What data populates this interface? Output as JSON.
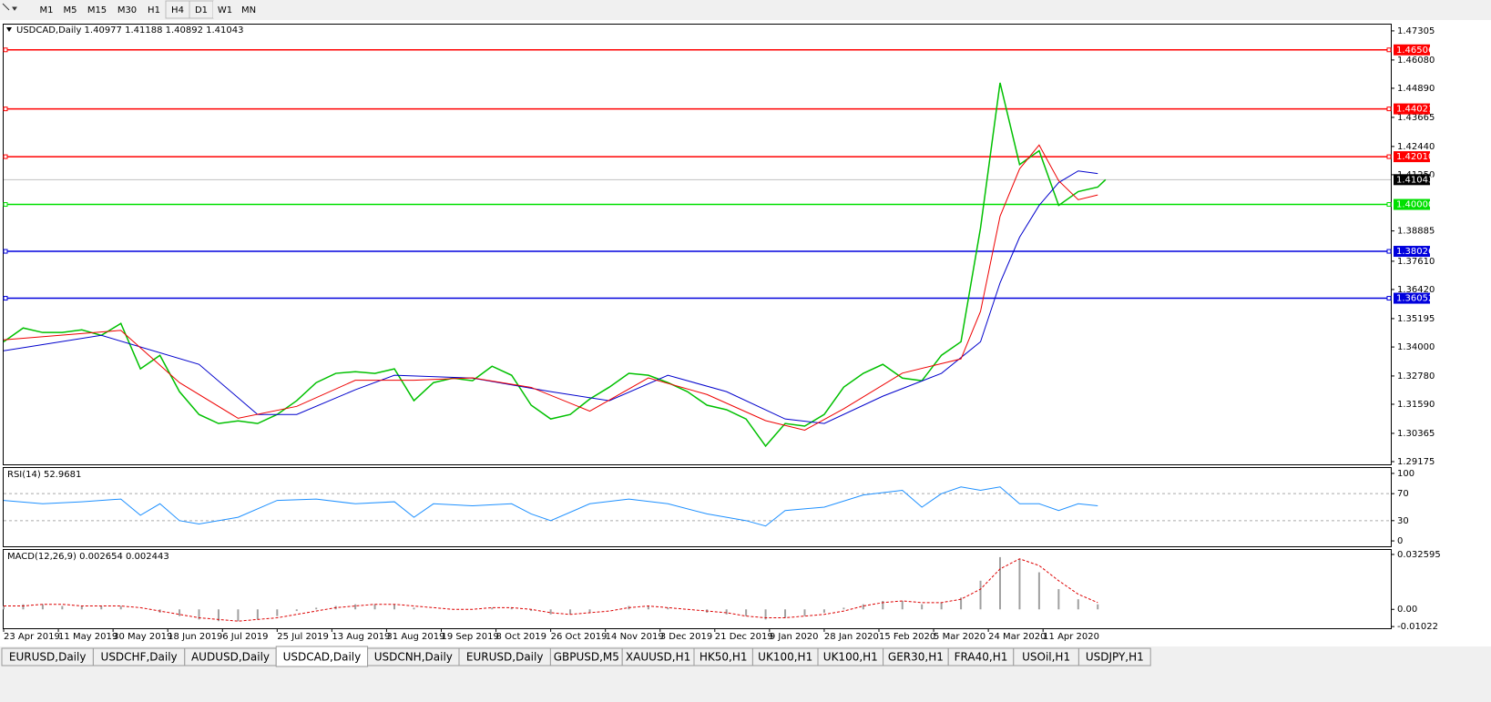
{
  "toolbar": {
    "buttons": [
      "M1",
      "M5",
      "M15",
      "M30",
      "H1",
      "H4",
      "D1",
      "W1",
      "MN"
    ]
  },
  "chart": {
    "header": "USDCAD,Daily  1.40977 1.41188 1.40892 1.41043",
    "xlim": [
      0,
      355
    ],
    "xticks": [
      {
        "value": 0,
        "label": "23 Apr 2019"
      },
      {
        "value": 14,
        "label": "11 May 2019"
      },
      {
        "value": 28,
        "label": "30 May 2019"
      },
      {
        "value": 42,
        "label": "18 Jun 2019"
      },
      {
        "value": 56,
        "label": "6 Jul 2019"
      },
      {
        "value": 70,
        "label": "25 Jul 2019"
      },
      {
        "value": 84,
        "label": "13 Aug 2019"
      },
      {
        "value": 98,
        "label": "31 Aug 2019"
      },
      {
        "value": 112,
        "label": "19 Sep 2019"
      },
      {
        "value": 126,
        "label": "8 Oct 2019"
      },
      {
        "value": 140,
        "label": "26 Oct 2019"
      },
      {
        "value": 154,
        "label": "14 Nov 2019"
      },
      {
        "value": 168,
        "label": "3 Dec 2019"
      },
      {
        "value": 182,
        "label": "21 Dec 2019"
      },
      {
        "value": 196,
        "label": "9 Jan 2020"
      },
      {
        "value": 210,
        "label": "28 Jan 2020"
      },
      {
        "value": 224,
        "label": "15 Feb 2020"
      },
      {
        "value": 238,
        "label": "5 Mar 2020"
      },
      {
        "value": 252,
        "label": "24 Mar 2020"
      },
      {
        "value": 266,
        "label": "11 Apr 2020"
      }
    ],
    "ylim": [
      1.2906,
      1.4757
    ],
    "yticks": [
      1.47305,
      {
        "value": 1.4608,
        "label": "1.46080"
      },
      {
        "value": 1.4489,
        "label": "1.44890"
      },
      1.43665,
      {
        "value": 1.4244,
        "label": "1.42440"
      },
      {
        "value": 1.4125,
        "label": "1.41250"
      },
      1.38885,
      {
        "value": 1.3761,
        "label": "1.37610"
      },
      {
        "value": 1.3642,
        "label": "1.36420"
      },
      1.35195,
      {
        "value": 1.34,
        "label": "1.34000"
      },
      {
        "value": 1.3278,
        "label": "1.32780"
      },
      {
        "value": 1.3159,
        "label": "1.31590"
      },
      1.30365,
      1.29175
    ],
    "levels": [
      {
        "value": 1.46506,
        "color": "#ff0000"
      },
      {
        "value": 1.44021,
        "color": "#ff0000"
      },
      {
        "value": {
          "value": 1.4201,
          "label": "1.42010"
        },
        "color": "#ff0000"
      },
      {
        "value": {
          "value": 1.4,
          "label": "1.40000"
        },
        "color": "#00e000"
      },
      {
        "value": 1.38026,
        "color": "#0000dd"
      },
      {
        "value": 1.36052,
        "color": "#0000dd"
      }
    ],
    "current": 1.41043,
    "series": [
      {
        "name": "price",
        "color": "#00c000",
        "width": 1.5,
        "x": [
          0,
          5,
          10,
          15,
          20,
          25,
          30,
          35,
          40,
          45,
          50,
          55,
          60,
          65,
          70,
          75,
          80,
          85,
          90,
          95,
          100,
          105,
          110,
          115,
          120,
          125,
          130,
          135,
          140,
          145,
          150,
          155,
          160,
          165,
          170,
          175,
          180,
          185,
          190,
          195,
          200,
          205,
          210,
          215,
          220,
          225,
          230,
          235,
          240,
          245,
          250,
          255,
          260,
          265,
          270,
          275,
          280,
          282
        ],
        "values": [
          1.3422,
          1.348,
          1.3461,
          1.3461,
          1.3472,
          1.3449,
          1.3499,
          1.3308,
          1.3365,
          1.3212,
          1.3116,
          1.3078,
          1.3089,
          1.3078,
          1.3116,
          1.3174,
          1.325,
          1.3289,
          1.3296,
          1.3289,
          1.3308,
          1.3174,
          1.325,
          1.3269,
          1.3258,
          1.3319,
          1.3281,
          1.3155,
          1.3097,
          1.3116,
          1.3181,
          1.3231,
          1.3289,
          1.3281,
          1.325,
          1.3212,
          1.3155,
          1.3136,
          1.3097,
          1.2983,
          1.3078,
          1.3067,
          1.3116,
          1.3231,
          1.3289,
          1.3327,
          1.3269,
          1.3258,
          1.3365,
          1.3422,
          1.3901,
          1.4512,
          1.4168,
          1.4226,
          1.3996,
          1.4054,
          1.4073,
          1.41043
        ]
      },
      {
        "name": "ma-slow",
        "color": "#0000cc",
        "width": 1,
        "x": [
          0,
          25,
          50,
          65,
          75,
          90,
          100,
          120,
          140,
          155,
          170,
          185,
          200,
          210,
          225,
          240,
          250,
          255,
          260,
          265,
          270,
          275,
          280
        ],
        "values": [
          1.3384,
          1.3449,
          1.3327,
          1.3116,
          1.3116,
          1.322,
          1.3281,
          1.3269,
          1.3212,
          1.3174,
          1.3281,
          1.3212,
          1.3097,
          1.3078,
          1.3193,
          1.3289,
          1.3422,
          1.367,
          1.3862,
          1.3996,
          1.4092,
          1.4141,
          1.413
        ]
      },
      {
        "name": "ma-fast",
        "color": "#ee0000",
        "width": 1,
        "x": [
          0,
          30,
          45,
          60,
          75,
          90,
          105,
          120,
          135,
          150,
          165,
          180,
          195,
          205,
          215,
          230,
          245,
          250,
          255,
          260,
          265,
          270,
          275,
          280
        ],
        "values": [
          1.343,
          1.347,
          1.325,
          1.31,
          1.315,
          1.326,
          1.326,
          1.327,
          1.323,
          1.313,
          1.327,
          1.32,
          1.309,
          1.305,
          1.314,
          1.329,
          1.335,
          1.355,
          1.395,
          1.415,
          1.425,
          1.41,
          1.402,
          1.404
        ]
      }
    ]
  },
  "rsi": {
    "label": "RSI(14) 52.9681",
    "ylim": [
      -8,
      108
    ],
    "yticks": [
      100,
      70,
      30,
      0
    ],
    "levels": [
      70,
      30
    ],
    "color": "#1e90ff",
    "x": [
      0,
      10,
      20,
      30,
      35,
      40,
      45,
      50,
      60,
      70,
      80,
      90,
      100,
      105,
      110,
      120,
      130,
      135,
      140,
      150,
      160,
      170,
      180,
      190,
      195,
      200,
      210,
      220,
      230,
      235,
      240,
      245,
      250,
      255,
      260,
      265,
      270,
      275,
      280
    ],
    "values": [
      60,
      55,
      58,
      62,
      38,
      55,
      30,
      25,
      35,
      60,
      62,
      55,
      58,
      35,
      55,
      52,
      55,
      40,
      30,
      55,
      62,
      55,
      40,
      30,
      22,
      45,
      50,
      68,
      75,
      50,
      70,
      80,
      75,
      80,
      55,
      55,
      45,
      55,
      52
    ]
  },
  "macd": {
    "label": "MACD(12,26,9) 0.002654 0.002443",
    "ylim": [
      -0.01122,
      0.03527
    ],
    "yticks": [
      0.032595,
      {
        "value": 0,
        "label": "0.00"
      },
      -0.01022
    ],
    "x": [
      0,
      5,
      10,
      15,
      20,
      25,
      30,
      35,
      40,
      45,
      50,
      55,
      60,
      65,
      70,
      75,
      80,
      85,
      90,
      95,
      100,
      105,
      110,
      115,
      120,
      125,
      130,
      135,
      140,
      145,
      150,
      155,
      160,
      165,
      170,
      175,
      180,
      185,
      190,
      195,
      200,
      205,
      210,
      215,
      220,
      225,
      230,
      235,
      240,
      245,
      250,
      255,
      260,
      265,
      270,
      275,
      280
    ],
    "histogram": [
      0.002,
      0.003,
      0.003,
      0.002,
      0.002,
      0.002,
      0.002,
      0.0,
      -0.002,
      -0.004,
      -0.006,
      -0.007,
      -0.007,
      -0.006,
      -0.004,
      -0.001,
      0.001,
      0.002,
      0.003,
      0.003,
      0.003,
      0.001,
      0.0,
      0.0,
      0.0,
      0.001,
      0.001,
      -0.001,
      -0.003,
      -0.003,
      -0.002,
      0.0,
      0.002,
      0.002,
      0.001,
      0.0,
      -0.002,
      -0.003,
      -0.004,
      -0.006,
      -0.005,
      -0.004,
      -0.002,
      0.001,
      0.003,
      0.005,
      0.005,
      0.003,
      0.004,
      0.007,
      0.017,
      0.031,
      0.03,
      0.022,
      0.012,
      0.006,
      0.003
    ],
    "signal": [
      0.002,
      0.002,
      0.003,
      0.003,
      0.002,
      0.002,
      0.002,
      0.001,
      -0.001,
      -0.003,
      -0.005,
      -0.006,
      -0.007,
      -0.006,
      -0.005,
      -0.003,
      -0.001,
      0.001,
      0.002,
      0.003,
      0.003,
      0.002,
      0.001,
      0.0,
      0.0,
      0.001,
      0.001,
      0.0,
      -0.002,
      -0.003,
      -0.002,
      -0.001,
      0.001,
      0.002,
      0.001,
      0.0,
      -0.001,
      -0.002,
      -0.004,
      -0.005,
      -0.005,
      -0.004,
      -0.003,
      -0.001,
      0.002,
      0.004,
      0.005,
      0.004,
      0.004,
      0.006,
      0.012,
      0.024,
      0.03,
      0.026,
      0.017,
      0.009,
      0.004
    ],
    "histogram_color": "#a0a0a0",
    "signal_color": "#dd0000"
  },
  "tabs": {
    "items": [
      "EURUSD,Daily",
      "USDCHF,Daily",
      "AUDUSD,Daily",
      "USDCAD,Daily",
      "USDCNH,Daily",
      "EURUSD,Daily",
      "GBPUSD,M5",
      "XAUUSD,H1",
      "HK50,H1",
      "UK100,H1",
      "UK100,H1",
      "GER30,H1",
      "FRA40,H1",
      "USOil,H1",
      "USDJPY,H1"
    ],
    "active": 3
  }
}
